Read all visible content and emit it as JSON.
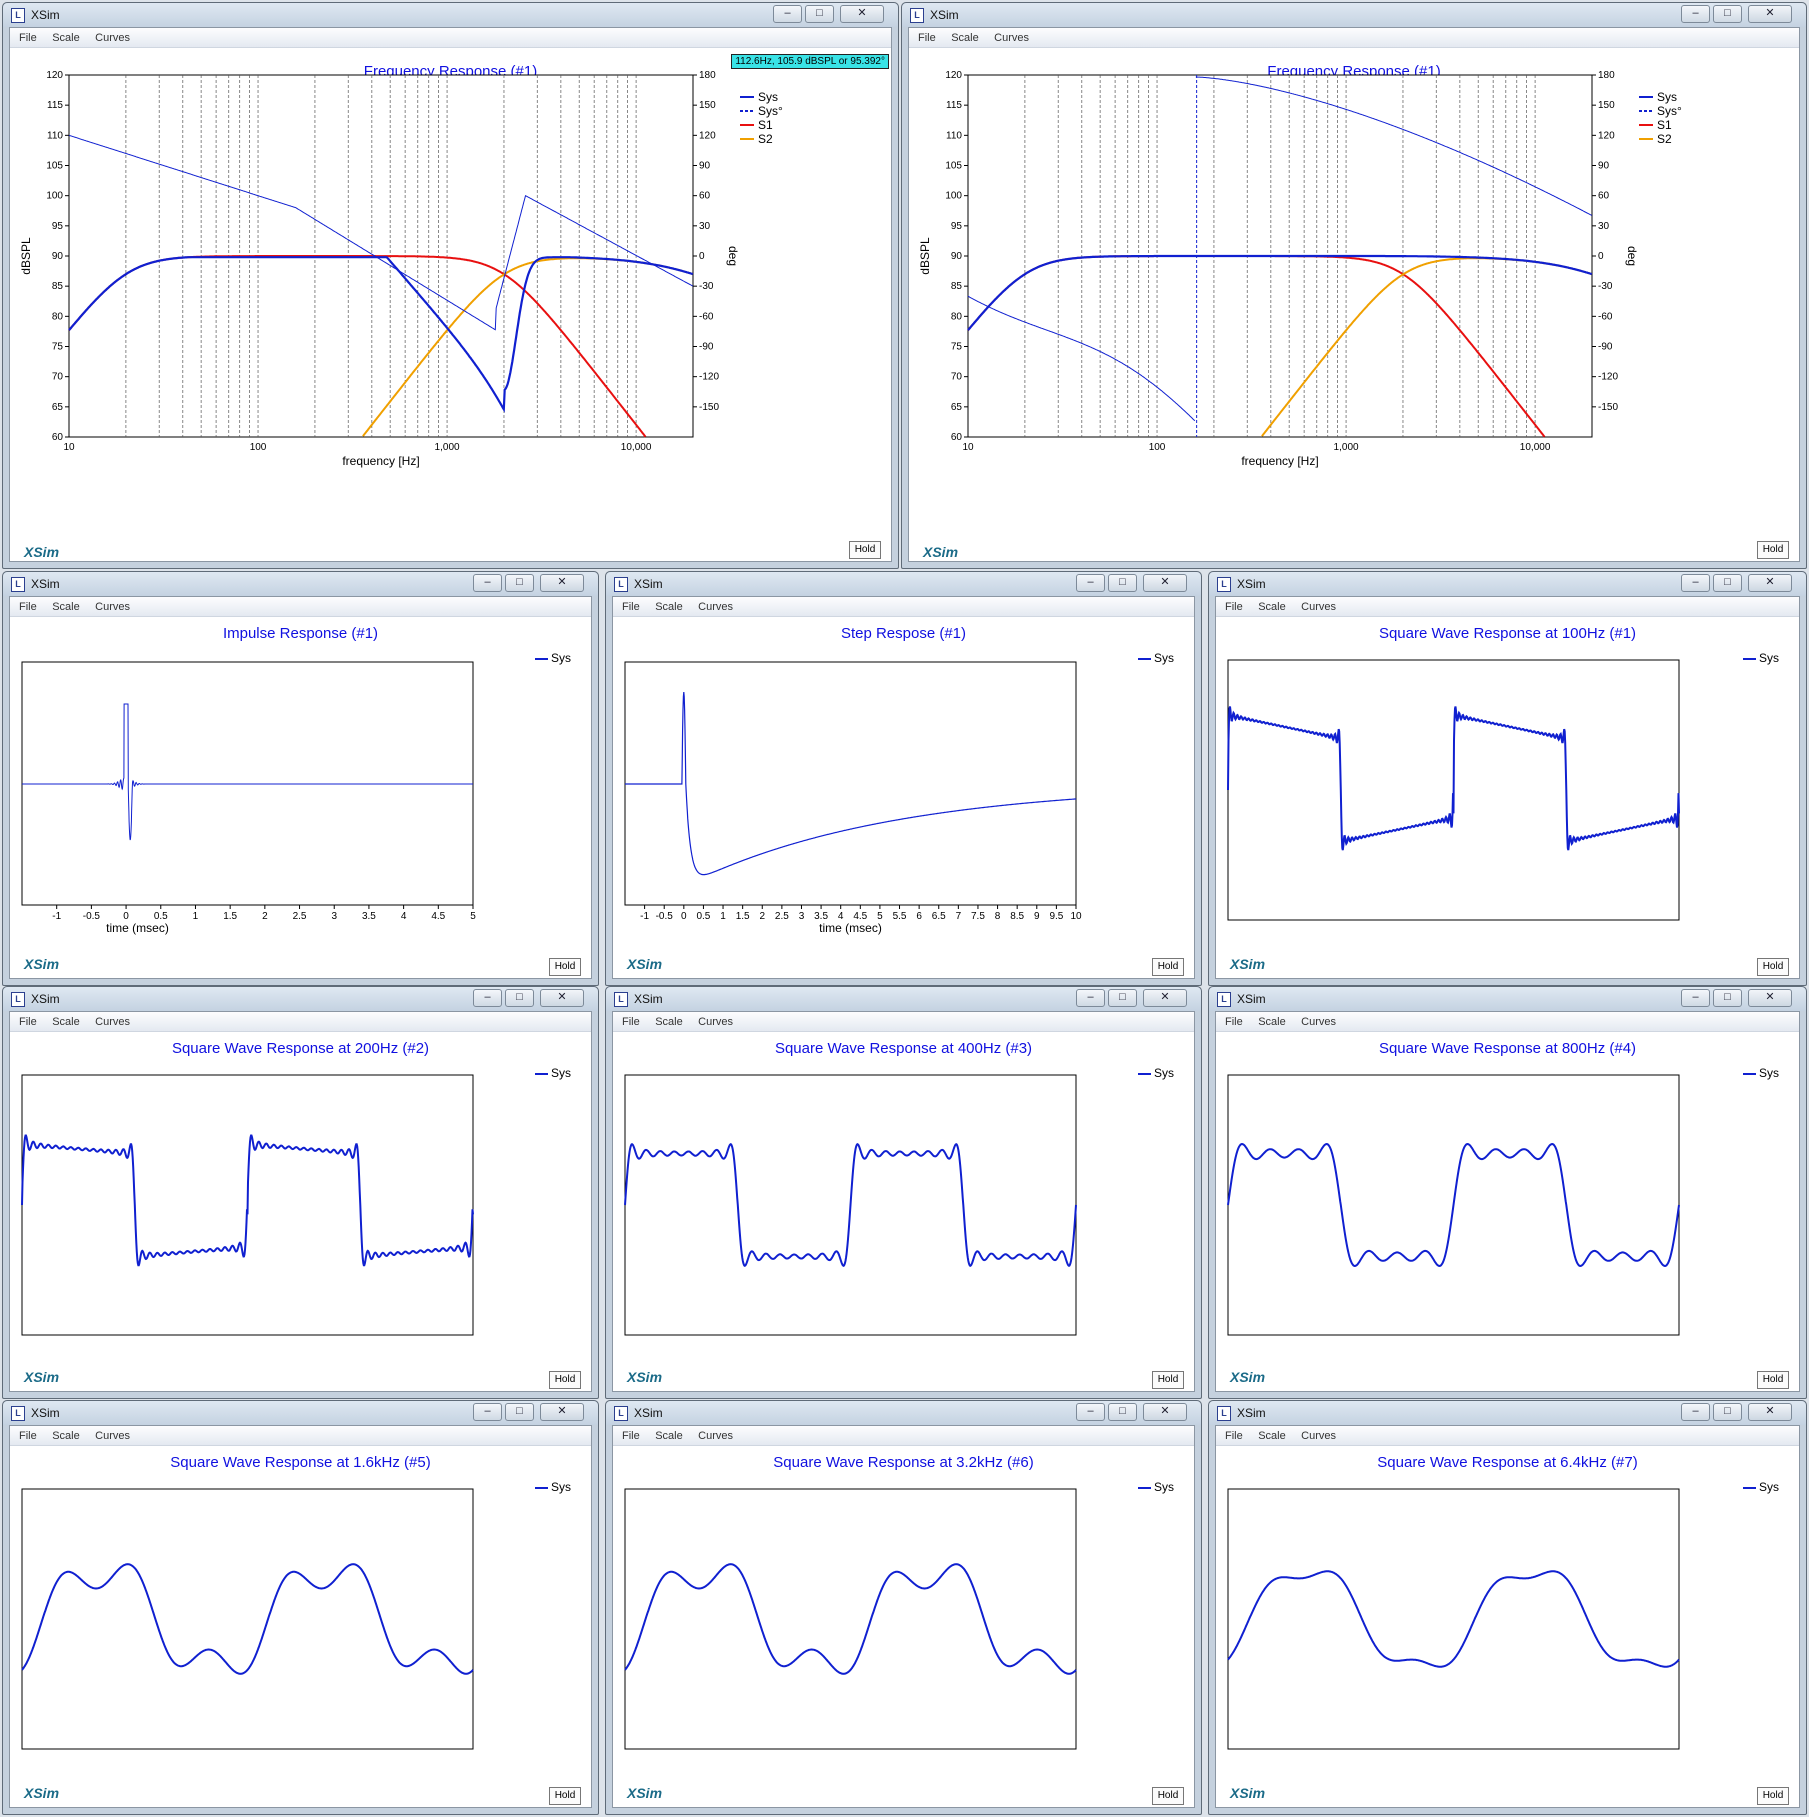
{
  "app": {
    "window_title": "XSim",
    "menu": [
      "File",
      "Scale",
      "Curves"
    ],
    "hold_label": "Hold",
    "logo": "XSim"
  },
  "colors": {
    "sys": "#1020d0",
    "s1": "#e81010",
    "s2": "#f0a000",
    "title": "#1010e0"
  },
  "fr1": {
    "title": "Frequency Response (#1)",
    "tooltip": "112.6Hz, 105.9 dBSPL or 95.392°",
    "ylabel": "dBSPL",
    "y2label": "deg",
    "xlabel": "frequency [Hz]",
    "xticks": [
      "10",
      "100",
      "1,000",
      "10,000"
    ],
    "yticks": [
      "120",
      "115",
      "110",
      "105",
      "100",
      "95",
      "90",
      "85",
      "80",
      "75",
      "70",
      "65",
      "60"
    ],
    "y2ticks": [
      "180",
      "150",
      "120",
      "90",
      "60",
      "30",
      "0",
      "-30",
      "-60",
      "-90",
      "-120",
      "-150"
    ],
    "legend": [
      "Sys",
      "Sys°",
      "S1",
      "S2"
    ]
  },
  "fr2": {
    "title": "Frequency Response (#1)",
    "ylabel": "dBSPL",
    "y2label": "deg",
    "xlabel": "frequency [Hz]",
    "xticks": [
      "10",
      "100",
      "1,000",
      "10,000"
    ],
    "yticks": [
      "120",
      "115",
      "110",
      "105",
      "100",
      "95",
      "90",
      "85",
      "80",
      "75",
      "70",
      "65",
      "60"
    ],
    "y2ticks": [
      "180",
      "150",
      "120",
      "90",
      "60",
      "30",
      "0",
      "-30",
      "-60",
      "-90",
      "-120",
      "-150"
    ],
    "legend": [
      "Sys",
      "Sys°",
      "S1",
      "S2"
    ]
  },
  "impulse": {
    "title": "Impulse Response (#1)",
    "xlabel": "time (msec)",
    "legend": "Sys",
    "xticks": [
      "-1",
      "-0.5",
      "0",
      "0.5",
      "1",
      "1.5",
      "2",
      "2.5",
      "3",
      "3.5",
      "4",
      "4.5",
      "5"
    ]
  },
  "step": {
    "title": "Step Respose (#1)",
    "xlabel": "time (msec)",
    "legend": "Sys",
    "xticks": [
      "-1",
      "-0.5",
      "0",
      "0.5",
      "1",
      "1.5",
      "2",
      "2.5",
      "3",
      "3.5",
      "4",
      "4.5",
      "5",
      "5.5",
      "6",
      "6.5",
      "7",
      "7.5",
      "8",
      "8.5",
      "9",
      "9.5",
      "10"
    ]
  },
  "sq100": {
    "title": "Square Wave Response at 100Hz (#1)",
    "legend": "Sys"
  },
  "sq200": {
    "title": "Square Wave Response at 200Hz (#2)",
    "legend": "Sys"
  },
  "sq400": {
    "title": "Square Wave Response at 400Hz (#3)",
    "legend": "Sys"
  },
  "sq800": {
    "title": "Square Wave Response at 800Hz (#4)",
    "legend": "Sys"
  },
  "sq1600": {
    "title": "Square Wave Response at 1.6kHz (#5)",
    "legend": "Sys"
  },
  "sq3200": {
    "title": "Square Wave Response at 3.2kHz (#6)",
    "legend": "Sys"
  },
  "sq6400": {
    "title": "Square Wave Response at 6.4kHz (#7)",
    "legend": "Sys"
  }
}
